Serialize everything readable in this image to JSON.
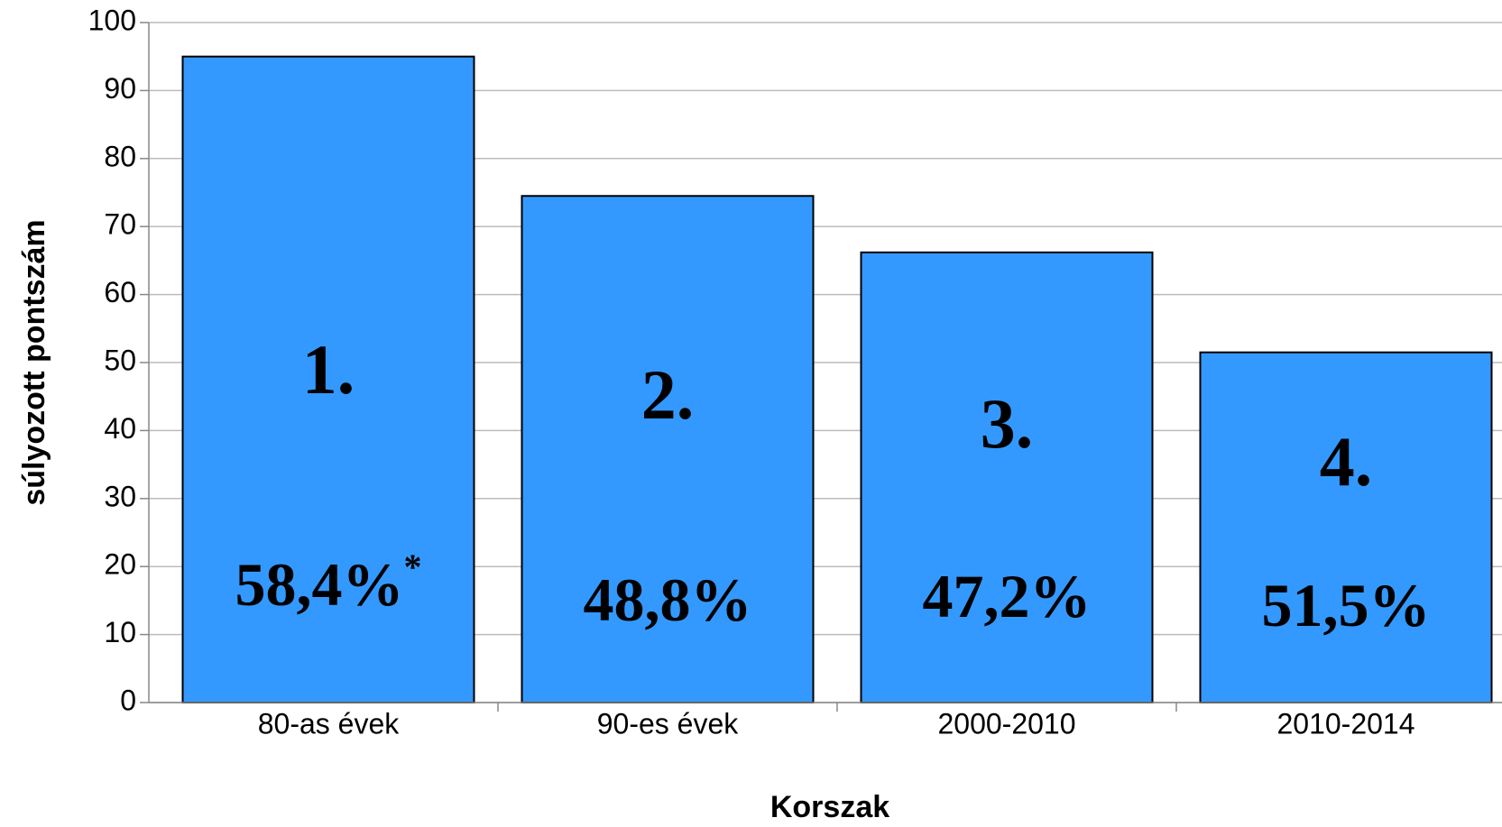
{
  "chart_data": {
    "type": "bar",
    "x_label": "Korszak",
    "y_label": "súlyozott pontszám",
    "categories": [
      "80-as évek",
      "90-es évek",
      "2000-2010",
      "2010-2014"
    ],
    "values": [
      95,
      74.5,
      66.2,
      51.5
    ],
    "color": "#3399ff",
    "ylim": [
      0,
      100
    ],
    "yticks": [
      0,
      10,
      20,
      30,
      40,
      50,
      60,
      70,
      80,
      90,
      100
    ],
    "grid": true,
    "annotations": [
      {
        "rank": "1.",
        "share": "58,4%",
        "note": "*"
      },
      {
        "rank": "2.",
        "share": "48,8%"
      },
      {
        "rank": "3.",
        "share": "47,2%"
      },
      {
        "rank": "4.",
        "share": "51,5%"
      }
    ]
  }
}
